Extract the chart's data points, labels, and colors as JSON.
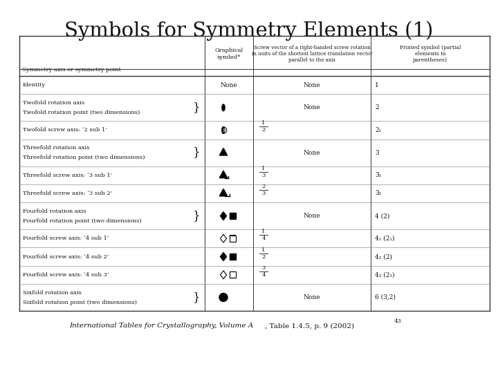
{
  "title": "Symbols for Symmetry Elements (1)",
  "footer_italic": "International Tables for Crystallography, Volume A",
  "footer_normal": ", Table 1.4.5, p. 9 (2002)",
  "footer_superscript": "43",
  "bg_color": "#ffffff",
  "text_color": "#111111",
  "rows": [
    {
      "name": "Identity",
      "screw": "None",
      "printed": "1",
      "sym": "none",
      "brace": false
    },
    {
      "name": "Twofold rotation axis\nTwofold rotation point (two dimensions)",
      "screw": "None",
      "printed": "2",
      "sym": "ellipse_filled",
      "brace": true
    },
    {
      "name": "Twofold screw axis: ‘2 sub 1’",
      "screw": "1/2",
      "printed": "2₁",
      "sym": "ellipse_half",
      "brace": false
    },
    {
      "name": "Threefold rotation axis\nThreefold rotation point (two dimensions)",
      "screw": "None",
      "printed": "3",
      "sym": "triangle_filled",
      "brace": true
    },
    {
      "name": "Threefold screw axis: ‘3 sub 1’",
      "screw": "1/3",
      "printed": "3₁",
      "sym": "triangle_foot1",
      "brace": false
    },
    {
      "name": "Threefold screw axis: ‘3 sub 2’",
      "screw": "2/3",
      "printed": "3₂",
      "sym": "triangle_foot2",
      "brace": false
    },
    {
      "name": "Fourfold rotation axis\nFourfold rotation point (two dimensions)",
      "screw": "None",
      "printed": "4 (2)",
      "sym": "diamond_sq_filled",
      "brace": true
    },
    {
      "name": "Fourfold screw axis: ‘4 sub 1’",
      "screw": "1/4",
      "printed": "4₁ (2₁)",
      "sym": "diamond_sq_1",
      "brace": false
    },
    {
      "name": "Fourfold screw axis: ‘4 sub 2’",
      "screw": "1/2",
      "printed": "4₂ (2)",
      "sym": "diamond_sq_2",
      "brace": false
    },
    {
      "name": "Fourfold screw axis: ‘4 sub 3’",
      "screw": "3/4",
      "printed": "4₃ (2₁)",
      "sym": "diamond_sq_3",
      "brace": false
    },
    {
      "name": "Sixfold rotation axis\nSixfold rotation point (two dimensions)",
      "screw": "None",
      "printed": "6 (3,2)",
      "sym": "circle_filled",
      "brace": true
    }
  ]
}
